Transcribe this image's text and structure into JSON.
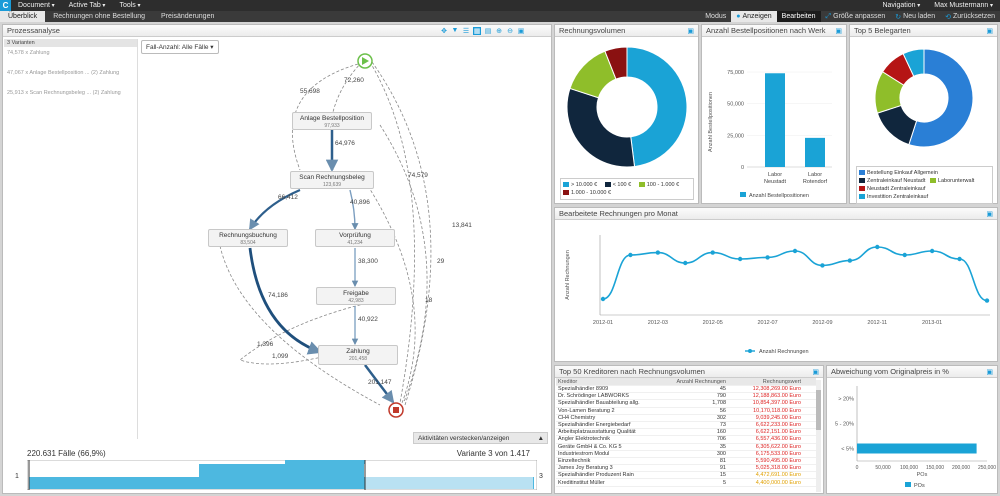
{
  "topbar": {
    "logo": "C",
    "menus": [
      "Document",
      "Active Tab",
      "Tools"
    ],
    "navigation": "Navigation",
    "user": "Max Mustermann"
  },
  "tabs": [
    "Überblick",
    "Rechnungen ohne Bestellung",
    "Preisänderungen"
  ],
  "toolbar": {
    "modus": "Modus",
    "anzeigen": "Anzeigen",
    "bearbeiten": "Bearbeiten",
    "groesse": "Größe anpassen",
    "neuladen": "Neu laden",
    "zuruecksetzen": "Zurücksetzen"
  },
  "prozess": {
    "title": "Prozessanalyse",
    "variants_header": "3 Varianten",
    "variants": [
      "74,578 x Zahlung",
      "47,067 x Anlage Bestellposition ... (2) Zahlung",
      "25,913 x Scan Rechnungsbeleg ... (2) Zahlung"
    ],
    "fall_dropdown": "Fall-Anzahl: Alle Fälle",
    "nodes": [
      {
        "label": "Anlage Bestellposition",
        "count": "97,933"
      },
      {
        "label": "Scan Rechnungsbeleg",
        "count": "123,639"
      },
      {
        "label": "Rechnungsbuchung",
        "count": "83,504"
      },
      {
        "label": "Vorprüfung",
        "count": "41,234"
      },
      {
        "label": "Freigabe",
        "count": "42,983"
      },
      {
        "label": "Zahlung",
        "count": "201,458"
      }
    ],
    "edges": [
      "72,260",
      "55,698",
      "64,976",
      "66,412",
      "40,896",
      "74,579",
      "13,841",
      "38,300",
      "29",
      "74,186",
      "18",
      "40,922",
      "1,396",
      "1,099",
      "201,147"
    ],
    "aktivitaeten": "Aktivitäten verstecken/anzeigen",
    "faelle": "220.631 Fälle (66,9%)",
    "variante": "Variante 3 von 1.417",
    "slider_left": "1",
    "slider_right": "3"
  },
  "rechnungsvolumen": {
    "title": "Rechnungsvolumen",
    "legend": [
      "> 10.000 €",
      "< 100 €",
      "100 - 1.000 €",
      "1.000 - 10.000 €"
    ]
  },
  "bestellpositionen": {
    "title": "Anzahl Bestellpositionen nach Werk",
    "ylabel": "Anzahl Bestellpositionen",
    "legend": "Anzahl Bestellpositionen",
    "ticks": [
      "75,000",
      "50,000",
      "25,000",
      "0"
    ]
  },
  "belegarten": {
    "title": "Top 5 Belegarten",
    "legend": [
      "Bestellung Einkauf Allgemein",
      "Zentraleinkauf Neustadt",
      "Laborunterwalt",
      "Neustadt Zentraleinkauf",
      "Investition Zentraleinkauf"
    ]
  },
  "monat": {
    "title": "Bearbeitete Rechnungen pro Monat",
    "ylabel": "Anzahl Rechnungen",
    "legend": "Anzahl Rechnungen",
    "xticks": [
      "2012-01",
      "2012-03",
      "2012-05",
      "2012-07",
      "2012-09",
      "2012-11",
      "2013-01"
    ]
  },
  "kreditoren": {
    "title": "Top 50 Kreditoren nach Rechnungsvolumen",
    "headers": [
      "Kreditor",
      "Anzahl Rechnungen",
      "Rechnungswert"
    ],
    "rows": [
      [
        "Spezialhändler 8909",
        "45",
        "12,308,269.00 Euro"
      ],
      [
        "Dr. Schrödinger LABWORKS",
        "790",
        "12,188,863.00 Euro"
      ],
      [
        "Spezialhändler Bauabteilung allg.",
        "1,708",
        "10,854,397.00 Euro"
      ],
      [
        "Von-Lamen Beratung 2",
        "56",
        "10,170,118.00 Euro"
      ],
      [
        "CH4 Chemistry",
        "302",
        "9,039,245.00 Euro"
      ],
      [
        "Spezialhändler Energiebedarf",
        "73",
        "6,622,233.00 Euro"
      ],
      [
        "Arbeitsplatzausstattung Qualität",
        "160",
        "6,622,151.00 Euro"
      ],
      [
        "Angler Elektrotechnik",
        "706",
        "6,557,436.00 Euro"
      ],
      [
        "Geräte GmbH & Co. KG 5",
        "35",
        "6,305,622.00 Euro"
      ],
      [
        "Industriestrom Modul",
        "300",
        "6,175,533.00 Euro"
      ],
      [
        "Einzeltechnik",
        "81",
        "5,590,495.00 Euro"
      ],
      [
        "James Joy Beratung 3",
        "91",
        "5,025,318.00 Euro"
      ],
      [
        "Spezialhändler Produzent Rain",
        "15",
        "4,472,691.00 Euro"
      ],
      [
        "Kreditinstitut Müller",
        "5",
        "4,400,000.00 Euro"
      ]
    ]
  },
  "abweichung": {
    "title": "Abweichung vom Originalpreis in %",
    "categories": [
      "> 20%",
      "5 - 20%",
      "< 5%"
    ],
    "xticks": [
      "0",
      "50,000",
      "100,000",
      "150,000",
      "200,000",
      "250,000"
    ],
    "xlabel": "POs",
    "legend": "POs"
  },
  "chart_data": [
    {
      "type": "pie",
      "title": "Rechnungsvolumen",
      "categories": [
        "> 10.000 €",
        "< 100 €",
        "100 - 1.000 €",
        "1.000 - 10.000 €"
      ],
      "values": [
        48,
        32,
        14,
        6
      ],
      "colors": [
        "#1aa3d6",
        "#10263d",
        "#8fbe2a",
        "#8a1111"
      ]
    },
    {
      "type": "bar",
      "title": "Anzahl Bestellpositionen nach Werk",
      "categories": [
        "Labor Neustadt",
        "Labor Rotendorf"
      ],
      "values": [
        74000,
        23000
      ],
      "ylim": [
        0,
        75000
      ]
    },
    {
      "type": "pie",
      "title": "Top 5 Belegarten",
      "categories": [
        "Bestellung Einkauf Allgemein",
        "Zentraleinkauf Neustadt",
        "Laborunterwalt",
        "Neustadt Zentraleinkauf",
        "Investition Zentraleinkauf"
      ],
      "values": [
        55,
        15,
        14,
        9,
        7
      ],
      "colors": [
        "#2a7fd6",
        "#10263d",
        "#8fbe2a",
        "#b51515",
        "#1aa3d6"
      ]
    },
    {
      "type": "line",
      "title": "Bearbeitete Rechnungen pro Monat",
      "x": [
        "2012-01",
        "2012-02",
        "2012-03",
        "2012-04",
        "2012-05",
        "2012-06",
        "2012-07",
        "2012-08",
        "2012-09",
        "2012-10",
        "2012-11",
        "2012-12",
        "2013-01",
        "2013-02",
        "2013-03"
      ],
      "values": [
        0.2,
        0.75,
        0.78,
        0.65,
        0.78,
        0.7,
        0.72,
        0.8,
        0.62,
        0.68,
        0.85,
        0.75,
        0.8,
        0.7,
        0.18
      ],
      "ylim": [
        0,
        1
      ]
    },
    {
      "type": "bar",
      "title": "Abweichung vom Originalpreis in %",
      "categories": [
        "> 20%",
        "5 - 20%",
        "< 5%"
      ],
      "values": [
        0,
        0,
        230000
      ],
      "xlim": [
        0,
        250000
      ]
    }
  ]
}
